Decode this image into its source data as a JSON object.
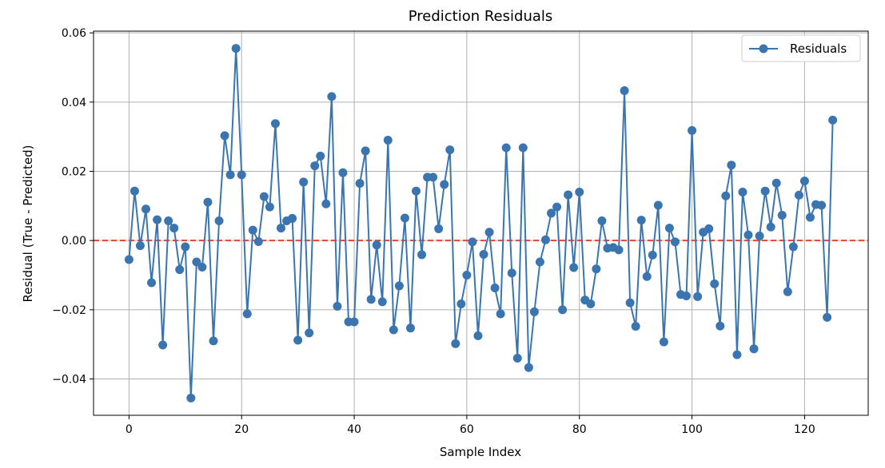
{
  "chart_data": {
    "type": "line",
    "title": "Prediction Residuals",
    "xlabel": "Sample Index",
    "ylabel": "Residual (True - Predicted)",
    "xlim": [
      -6.3,
      131.3
    ],
    "ylim": [
      -0.0505,
      0.0605
    ],
    "x_ticks": [
      0,
      20,
      40,
      60,
      80,
      100,
      120
    ],
    "x_tick_labels": [
      "0",
      "20",
      "40",
      "60",
      "80",
      "100",
      "120"
    ],
    "y_ticks": [
      -0.04,
      -0.02,
      0.0,
      0.02,
      0.04,
      0.06
    ],
    "y_tick_labels": [
      "−0.04",
      "−0.02",
      "0.00",
      "0.02",
      "0.04",
      "0.06"
    ],
    "grid": true,
    "legend_position": "top-right",
    "reference_line": {
      "y": 0,
      "style": "dashed",
      "color": "#e8432f"
    },
    "series": [
      {
        "name": "Residuals",
        "color": "#3b75af",
        "marker": "circle",
        "x": [
          0,
          1,
          2,
          3,
          4,
          5,
          6,
          7,
          8,
          9,
          10,
          11,
          12,
          13,
          14,
          15,
          16,
          17,
          18,
          19,
          20,
          21,
          22,
          23,
          24,
          25,
          26,
          27,
          28,
          29,
          30,
          31,
          32,
          33,
          34,
          35,
          36,
          37,
          38,
          39,
          40,
          41,
          42,
          43,
          44,
          45,
          46,
          47,
          48,
          49,
          50,
          51,
          52,
          53,
          54,
          55,
          56,
          57,
          58,
          59,
          60,
          61,
          62,
          63,
          64,
          65,
          66,
          67,
          68,
          69,
          70,
          71,
          72,
          73,
          74,
          75,
          76,
          77,
          78,
          79,
          80,
          81,
          82,
          83,
          84,
          85,
          86,
          87,
          88,
          89,
          90,
          91,
          92,
          93,
          94,
          95,
          96,
          97,
          98,
          99,
          100,
          101,
          102,
          103,
          104,
          105,
          106,
          107,
          108,
          109,
          110,
          111,
          112,
          113,
          114,
          115,
          116,
          117,
          118,
          119,
          120,
          121,
          122,
          123,
          124,
          125
        ],
        "values": [
          -0.0055,
          0.0143,
          -0.0015,
          0.0091,
          -0.0122,
          0.006,
          -0.0302,
          0.0057,
          0.0036,
          -0.0084,
          -0.0018,
          -0.0455,
          -0.0062,
          -0.0077,
          0.0111,
          -0.029,
          0.0057,
          0.0303,
          0.019,
          0.0555,
          0.019,
          -0.0212,
          0.003,
          -0.0003,
          0.0127,
          0.0097,
          0.0338,
          0.0036,
          0.0057,
          0.0064,
          -0.0288,
          0.0169,
          -0.0267,
          0.0216,
          0.0244,
          0.0106,
          0.0416,
          -0.019,
          0.0196,
          -0.0235,
          -0.0235,
          0.0165,
          0.0259,
          -0.017,
          -0.0013,
          -0.0177,
          0.029,
          -0.0258,
          -0.0131,
          0.0065,
          -0.0253,
          0.0143,
          -0.0041,
          0.0183,
          0.0183,
          0.0034,
          0.0162,
          0.0262,
          -0.0298,
          -0.0183,
          -0.01,
          -0.0004,
          -0.0275,
          -0.004,
          0.0024,
          -0.0137,
          -0.0212,
          0.0268,
          -0.0094,
          -0.034,
          0.0268,
          -0.0367,
          -0.0206,
          -0.0062,
          0.0002,
          0.0079,
          0.0097,
          -0.02,
          0.0132,
          -0.0078,
          0.014,
          -0.0172,
          -0.0183,
          -0.0082,
          0.0057,
          -0.0022,
          -0.002,
          -0.0027,
          0.0433,
          -0.018,
          -0.0248,
          0.0059,
          -0.0104,
          -0.0042,
          0.0102,
          -0.0293,
          0.0036,
          -0.0004,
          -0.0156,
          -0.016,
          0.0318,
          -0.0162,
          0.0024,
          0.0034,
          -0.0125,
          -0.0247,
          0.0129,
          0.0218,
          -0.033,
          0.014,
          0.0016,
          -0.0313,
          0.0013,
          0.0143,
          0.0039,
          0.0166,
          0.0073,
          -0.0148,
          -0.0018,
          0.0131,
          0.0172,
          0.0067,
          0.0104,
          0.0102,
          -0.0222,
          0.0348
        ]
      }
    ]
  }
}
